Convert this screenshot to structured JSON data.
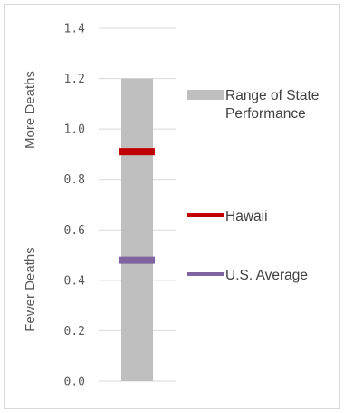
{
  "chart_data": {
    "type": "range-bar",
    "ylim": [
      0,
      1.4
    ],
    "y_ticks": [
      "1.4",
      "1.2",
      "1.0",
      "0.8",
      "0.6",
      "0.4",
      "0.2",
      "0.0"
    ],
    "y_tick_values": [
      1.4,
      1.2,
      1.0,
      0.8,
      0.6,
      0.4,
      0.2,
      0.0
    ],
    "range": {
      "low": 0.0,
      "high": 1.2,
      "color": "#bfbfbf"
    },
    "markers": [
      {
        "name": "Hawaii",
        "value": 0.91,
        "color": "#c00000"
      },
      {
        "name": "U.S. Average",
        "value": 0.48,
        "color": "#8064a2"
      }
    ],
    "side_labels": {
      "top": "More Deaths",
      "bottom": "Fewer Deaths"
    },
    "legend": {
      "range_line1": "Range of State",
      "range_line2": "Performance",
      "hawaii": "Hawaii",
      "us_average": "U.S. Average"
    },
    "grid": "horizontal-major"
  }
}
